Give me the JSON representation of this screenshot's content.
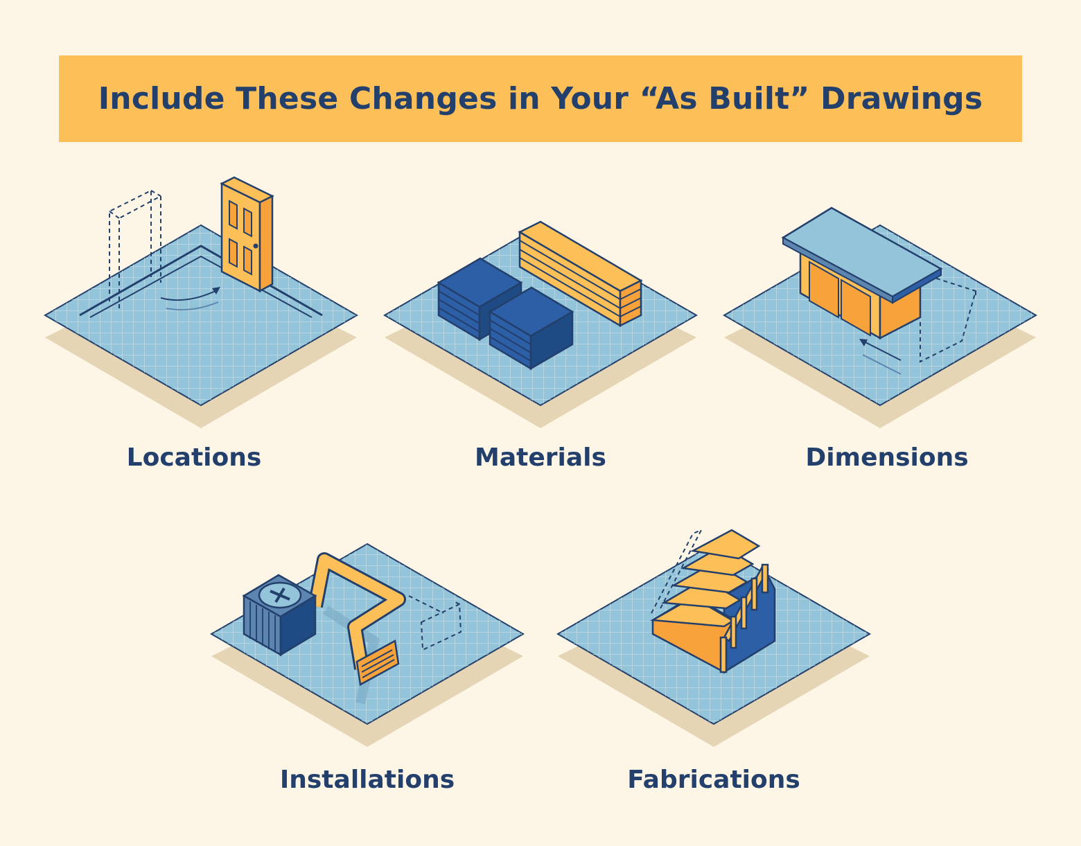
{
  "title": "Include These Changes in Your “As Built” Drawings",
  "items": [
    {
      "label": "Locations",
      "icon": "door-relocation-icon"
    },
    {
      "label": "Materials",
      "icon": "lumber-and-block-stack-icon"
    },
    {
      "label": "Dimensions",
      "icon": "cabinet-resize-icon"
    },
    {
      "label": "Installations",
      "icon": "hvac-ductwork-icon"
    },
    {
      "label": "Fabrications",
      "icon": "staircase-icon"
    }
  ],
  "colors": {
    "background": "#fdf5e6",
    "banner": "#fdbf58",
    "navy": "#233f6b",
    "blueprint": "#93c4d9",
    "shadow": "#e6d5b5",
    "orange": "#f7a23a",
    "blue": "#2d5fa6"
  }
}
